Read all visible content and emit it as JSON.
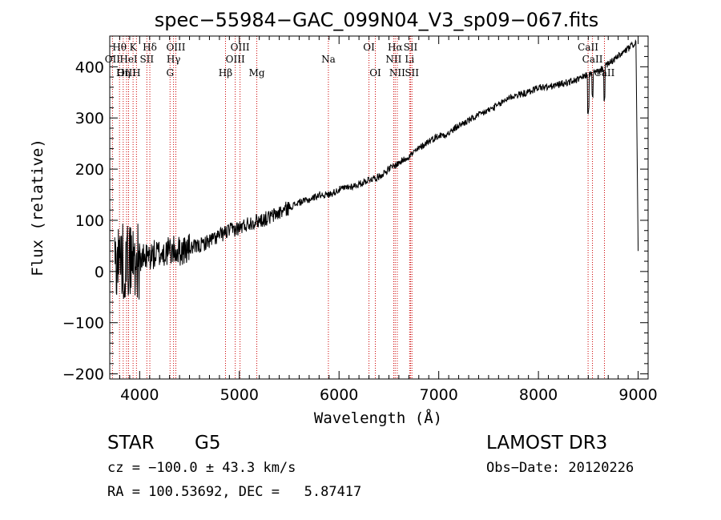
{
  "chart_data": {
    "type": "line",
    "title": "spec−55984−GAC_099N04_V3_sp09−067.fits",
    "xlabel": "Wavelength (Å)",
    "ylabel": "Flux (relative)",
    "xlim": [
      3700,
      9100
    ],
    "ylim": [
      -210,
      460
    ],
    "xticks": [
      4000,
      5000,
      6000,
      7000,
      8000,
      9000
    ],
    "yticks": [
      -200,
      -100,
      0,
      100,
      200,
      300,
      400
    ],
    "xtick_labels": [
      "4000",
      "5000",
      "6000",
      "7000",
      "8000",
      "9000"
    ],
    "ytick_labels": [
      "−200",
      "−100",
      "0",
      "100",
      "200",
      "300",
      "400"
    ],
    "line_color": "#000000",
    "marker_color": "#cc0000",
    "spectrum_trend": [
      [
        3750,
        20
      ],
      [
        3800,
        30
      ],
      [
        3850,
        15
      ],
      [
        3900,
        25
      ],
      [
        4000,
        20
      ],
      [
        4100,
        30
      ],
      [
        4200,
        35
      ],
      [
        4300,
        40
      ],
      [
        4400,
        40
      ],
      [
        4500,
        45
      ],
      [
        4600,
        50
      ],
      [
        4700,
        60
      ],
      [
        4800,
        70
      ],
      [
        4900,
        80
      ],
      [
        5000,
        85
      ],
      [
        5100,
        95
      ],
      [
        5200,
        100
      ],
      [
        5300,
        105
      ],
      [
        5400,
        115
      ],
      [
        5500,
        125
      ],
      [
        5600,
        135
      ],
      [
        5700,
        140
      ],
      [
        5800,
        150
      ],
      [
        5900,
        150
      ],
      [
        6000,
        160
      ],
      [
        6100,
        165
      ],
      [
        6200,
        170
      ],
      [
        6300,
        180
      ],
      [
        6400,
        185
      ],
      [
        6500,
        200
      ],
      [
        6600,
        212
      ],
      [
        6700,
        225
      ],
      [
        6800,
        240
      ],
      [
        6900,
        255
      ],
      [
        7000,
        265
      ],
      [
        7100,
        270
      ],
      [
        7200,
        285
      ],
      [
        7300,
        295
      ],
      [
        7400,
        305
      ],
      [
        7500,
        315
      ],
      [
        7600,
        325
      ],
      [
        7700,
        340
      ],
      [
        7800,
        345
      ],
      [
        7900,
        350
      ],
      [
        8000,
        360
      ],
      [
        8100,
        360
      ],
      [
        8200,
        365
      ],
      [
        8300,
        370
      ],
      [
        8400,
        375
      ],
      [
        8500,
        385
      ],
      [
        8600,
        390
      ],
      [
        8700,
        405
      ],
      [
        8800,
        420
      ],
      [
        8900,
        435
      ],
      [
        8980,
        448
      ]
    ],
    "spectral_lines": [
      {
        "label": "Hθ",
        "wavelength": 3798,
        "row": 0
      },
      {
        "label": "OII",
        "wavelength": 3727,
        "row": 1
      },
      {
        "label": "OIII",
        "wavelength": 3869,
        "row": 2
      },
      {
        "label": "K",
        "wavelength": 3934,
        "row": 0
      },
      {
        "label": "HeI",
        "wavelength": 3889,
        "row": 1
      },
      {
        "label": "Hη",
        "wavelength": 3835,
        "row": 2
      },
      {
        "label": "H",
        "wavelength": 3968,
        "row": 2
      },
      {
        "label": "SII",
        "wavelength": 4072,
        "row": 1
      },
      {
        "label": "Hδ",
        "wavelength": 4102,
        "row": 0
      },
      {
        "label": "OIII",
        "wavelength": 4363,
        "row": 0
      },
      {
        "label": "Hγ",
        "wavelength": 4340,
        "row": 1
      },
      {
        "label": "G",
        "wavelength": 4305,
        "row": 2
      },
      {
        "label": "OIII",
        "wavelength": 5007,
        "row": 0
      },
      {
        "label": "OIII",
        "wavelength": 4959,
        "row": 1
      },
      {
        "label": "Hβ",
        "wavelength": 4861,
        "row": 2
      },
      {
        "label": "Mg",
        "wavelength": 5175,
        "row": 2
      },
      {
        "label": "Na",
        "wavelength": 5893,
        "row": 1
      },
      {
        "label": "OI",
        "wavelength": 6300,
        "row": 0
      },
      {
        "label": "OI",
        "wavelength": 6364,
        "row": 2
      },
      {
        "label": "Hα",
        "wavelength": 6563,
        "row": 0
      },
      {
        "label": "SII",
        "wavelength": 6717,
        "row": 0
      },
      {
        "label": "NII",
        "wavelength": 6548,
        "row": 1
      },
      {
        "label": "Li",
        "wavelength": 6708,
        "row": 1
      },
      {
        "label": "NII",
        "wavelength": 6584,
        "row": 2
      },
      {
        "label": "SII",
        "wavelength": 6731,
        "row": 2
      },
      {
        "label": "CaII",
        "wavelength": 8498,
        "row": 0
      },
      {
        "label": "CaII",
        "wavelength": 8542,
        "row": 1
      },
      {
        "label": "CaII",
        "wavelength": 8662,
        "row": 2
      }
    ]
  },
  "info": {
    "object_class": "STAR",
    "subclass": "G5",
    "survey": "LAMOST DR3",
    "cz": "cz = −100.0 ± 43.3 km/s",
    "obs_date": "Obs−Date: 20120226",
    "coords": "RA = 100.53692, DEC =   5.87417"
  }
}
